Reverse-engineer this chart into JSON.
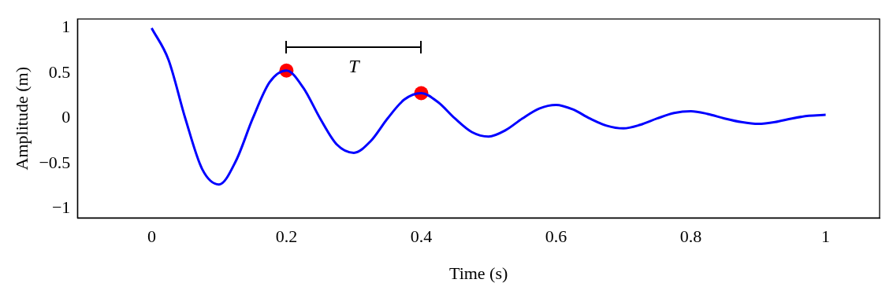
{
  "chart_data": {
    "type": "line",
    "xlabel": "Time (s)",
    "ylabel": "Amplitude (m)",
    "xlim": [
      -0.11,
      1.08
    ],
    "ylim": [
      -1.1,
      1.1
    ],
    "xticks": [
      0,
      0.2,
      0.4,
      0.6,
      0.8,
      1
    ],
    "yticks": [
      -1,
      -0.5,
      0,
      0.5,
      1
    ],
    "grid": false,
    "legend": false,
    "marker": "none",
    "annotations": [
      "T"
    ],
    "series": [
      {
        "color": "#0000ff",
        "x": [
          0,
          0.025,
          0.05,
          0.075,
          0.1,
          0.125,
          0.15,
          0.175,
          0.2,
          0.225,
          0.25,
          0.275,
          0.3,
          0.325,
          0.35,
          0.375,
          0.4,
          0.425,
          0.45,
          0.475,
          0.5,
          0.525,
          0.55,
          0.575,
          0.6,
          0.625,
          0.65,
          0.675,
          0.7,
          0.725,
          0.75,
          0.775,
          0.8,
          0.825,
          0.85,
          0.875,
          0.9,
          0.925,
          0.95,
          0.975,
          1
        ],
        "values": [
          1,
          0.65,
          0,
          -0.56,
          -0.73,
          -0.47,
          0,
          0.4,
          0.53,
          0.34,
          0,
          -0.29,
          -0.38,
          -0.25,
          0,
          0.21,
          0.28,
          0.18,
          0,
          -0.15,
          -0.2,
          -0.13,
          0,
          0.11,
          0.15,
          0.1,
          0,
          -0.08,
          -0.11,
          -0.07,
          0,
          0.06,
          0.08,
          0.05,
          0,
          -0.04,
          -0.06,
          -0.04,
          0,
          0.03,
          0.04
        ]
      },
      {
        "type": "scatter",
        "color": "#ff0000",
        "marker": "circle",
        "x": [
          0.2,
          0.4
        ],
        "values": [
          0.53,
          0.28
        ]
      }
    ]
  }
}
